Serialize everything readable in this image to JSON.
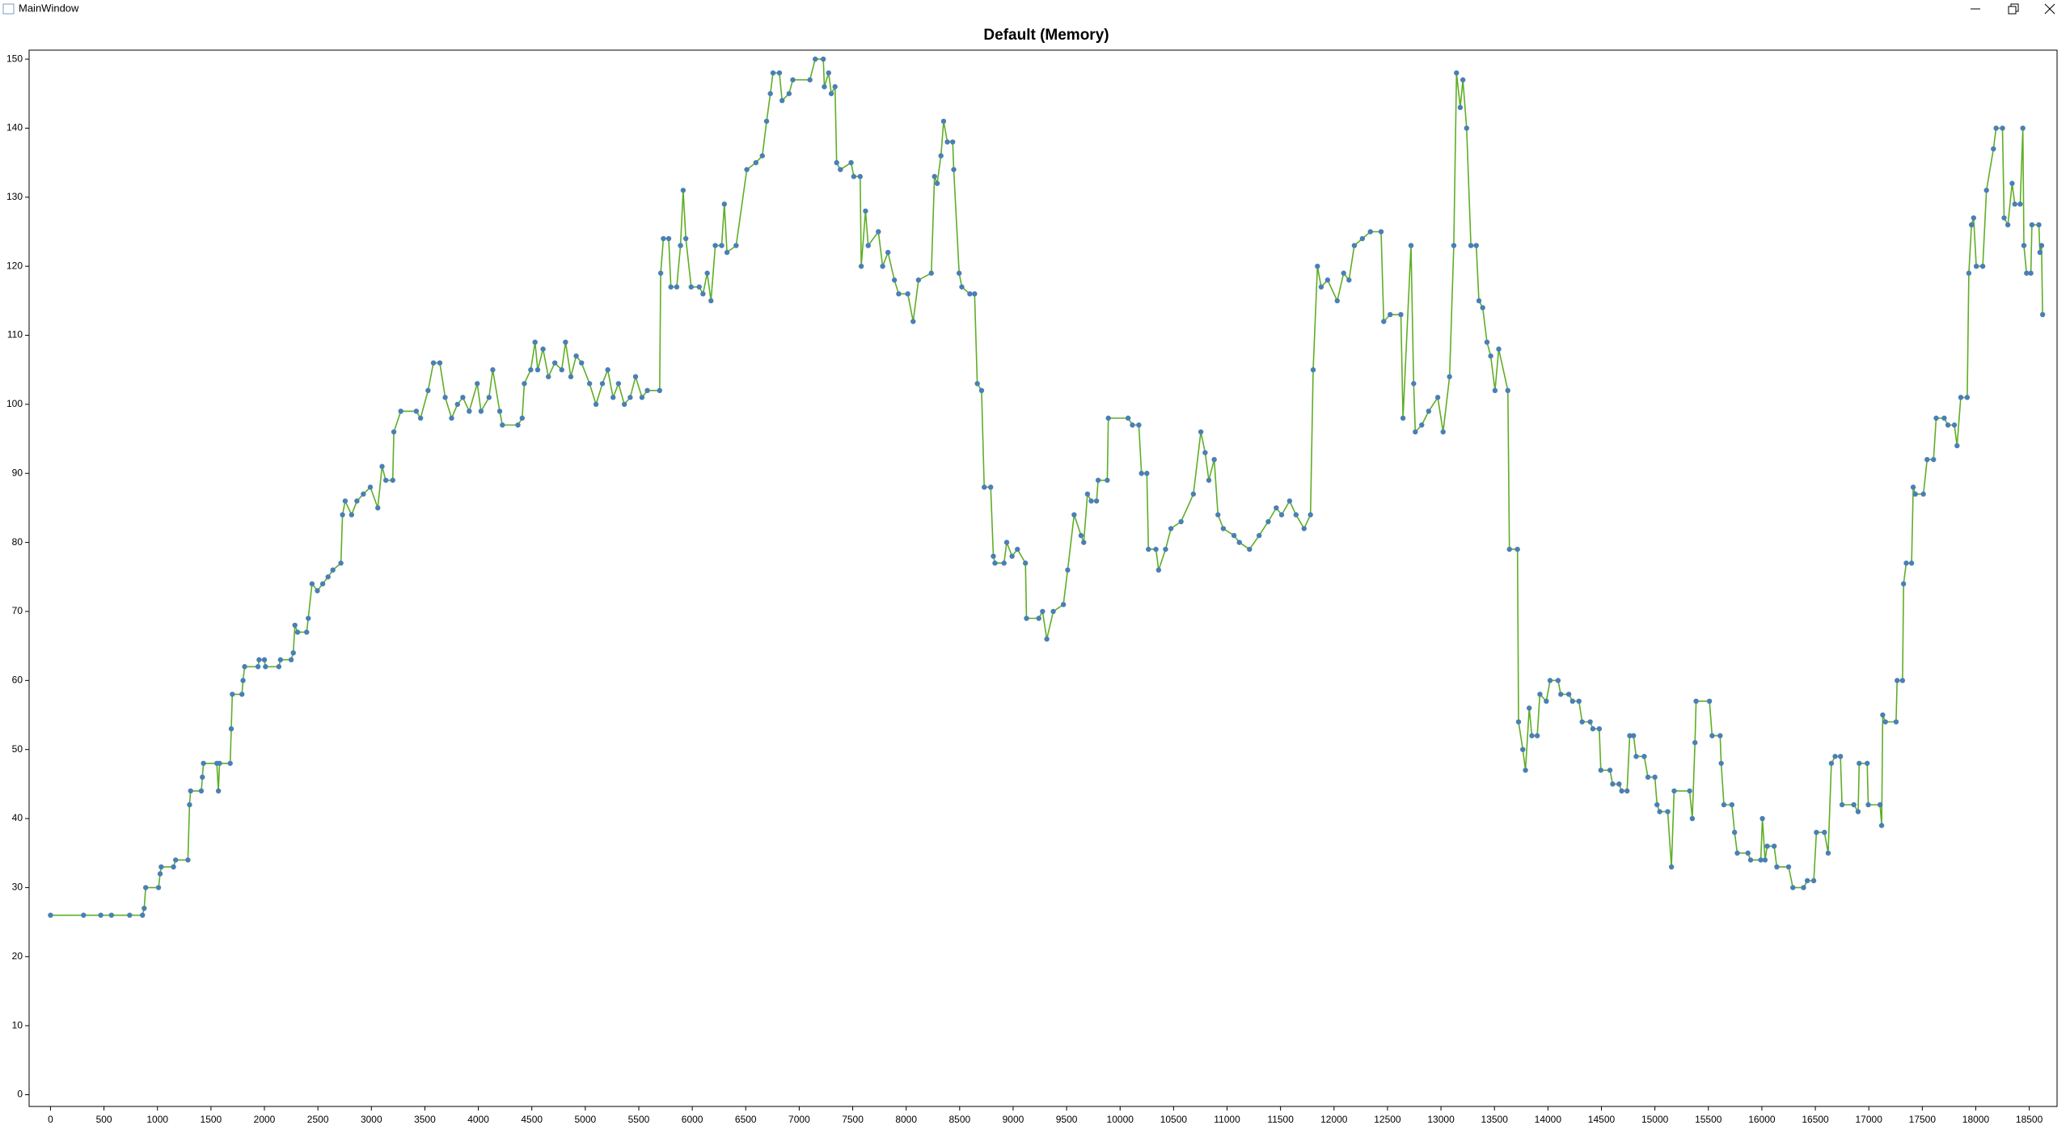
{
  "window": {
    "title": "MainWindow"
  },
  "chart_data": {
    "type": "line",
    "title": "Default (Memory)",
    "x": [
      0,
      309,
      470,
      570,
      740,
      860,
      876,
      890,
      1010,
      1025,
      1035,
      1150,
      1170,
      1285,
      1300,
      1310,
      1410,
      1420,
      1430,
      1555,
      1570,
      1580,
      1680,
      1690,
      1700,
      1790,
      1800,
      1815,
      1940,
      1950,
      2000,
      2010,
      2135,
      2150,
      2250,
      2270,
      2285,
      2310,
      2395,
      2410,
      2445,
      2495,
      2545,
      2595,
      2640,
      2715,
      2730,
      2755,
      2815,
      2865,
      2925,
      2990,
      3060,
      3100,
      3135,
      3200,
      3210,
      3275,
      3420,
      3460,
      3530,
      3580,
      3640,
      3690,
      3750,
      3805,
      3855,
      3915,
      3990,
      4025,
      4100,
      4135,
      4200,
      4225,
      4370,
      4410,
      4430,
      4490,
      4530,
      4555,
      4605,
      4655,
      4715,
      4780,
      4815,
      4865,
      4915,
      4965,
      5040,
      5100,
      5160,
      5210,
      5260,
      5310,
      5365,
      5420,
      5470,
      5530,
      5580,
      5695,
      5705,
      5730,
      5780,
      5800,
      5855,
      5890,
      5915,
      5940,
      5990,
      6065,
      6100,
      6140,
      6175,
      6215,
      6275,
      6300,
      6325,
      6410,
      6510,
      6595,
      6655,
      6695,
      6730,
      6755,
      6815,
      6840,
      6905,
      6940,
      7100,
      7150,
      7225,
      7235,
      7275,
      7300,
      7335,
      7350,
      7385,
      7485,
      7510,
      7570,
      7580,
      7620,
      7645,
      7740,
      7780,
      7830,
      7890,
      7930,
      8015,
      8065,
      8115,
      8235,
      8265,
      8290,
      8325,
      8350,
      8385,
      8435,
      8445,
      8495,
      8520,
      8595,
      8640,
      8665,
      8705,
      8730,
      8790,
      8815,
      8830,
      8915,
      8940,
      8990,
      9040,
      9115,
      9125,
      9240,
      9275,
      9315,
      9375,
      9470,
      9510,
      9570,
      9635,
      9660,
      9695,
      9730,
      9780,
      9795,
      9880,
      9890,
      10075,
      10115,
      10175,
      10200,
      10250,
      10265,
      10335,
      10360,
      10425,
      10475,
      10570,
      10685,
      10755,
      10795,
      10830,
      10880,
      10915,
      10965,
      11065,
      11115,
      11210,
      11300,
      11385,
      11460,
      11510,
      11585,
      11645,
      11720,
      11780,
      11805,
      11845,
      11880,
      11940,
      12030,
      12090,
      12140,
      12190,
      12265,
      12340,
      12440,
      12465,
      12525,
      12625,
      12645,
      12720,
      12745,
      12760,
      12820,
      12885,
      12970,
      13020,
      13080,
      13120,
      13145,
      13180,
      13205,
      13240,
      13280,
      13330,
      13355,
      13390,
      13430,
      13465,
      13505,
      13540,
      13625,
      13640,
      13715,
      13725,
      13765,
      13790,
      13825,
      13850,
      13900,
      13925,
      13985,
      14020,
      14095,
      14120,
      14195,
      14230,
      14290,
      14320,
      14395,
      14420,
      14480,
      14495,
      14580,
      14605,
      14665,
      14690,
      14740,
      14765,
      14800,
      14825,
      14900,
      14935,
      15000,
      15020,
      15045,
      15120,
      15155,
      15180,
      15325,
      15350,
      15375,
      15385,
      15510,
      15535,
      15610,
      15620,
      15645,
      15720,
      15745,
      15770,
      15870,
      15895,
      15990,
      16005,
      16030,
      16050,
      16115,
      16140,
      16250,
      16290,
      16390,
      16425,
      16485,
      16510,
      16585,
      16620,
      16650,
      16685,
      16735,
      16750,
      16860,
      16900,
      16910,
      16985,
      16995,
      17105,
      17120,
      17130,
      17155,
      17255,
      17265,
      17315,
      17325,
      17350,
      17400,
      17415,
      17435,
      17510,
      17545,
      17605,
      17630,
      17705,
      17740,
      17800,
      17825,
      17860,
      17920,
      17935,
      17960,
      17980,
      18005,
      18065,
      18100,
      18165,
      18190,
      18250,
      18265,
      18300,
      18340,
      18365,
      18415,
      18440,
      18450,
      18475,
      18515,
      18525,
      18590,
      18600,
      18615,
      18625
    ],
    "series": [
      {
        "color": "#5fae25",
        "marker_color": "#4a7fb5",
        "values": [
          26,
          26,
          26,
          26,
          26,
          26,
          27,
          30,
          30,
          32,
          33,
          33,
          34,
          34,
          42,
          44,
          44,
          46,
          48,
          48,
          44,
          48,
          48,
          53,
          58,
          58,
          60,
          62,
          62,
          63,
          63,
          62,
          62,
          63,
          63,
          64,
          68,
          67,
          67,
          69,
          74,
          73,
          74,
          75,
          76,
          77,
          84,
          86,
          84,
          86,
          87,
          88,
          85,
          91,
          89,
          89,
          96,
          99,
          99,
          98,
          102,
          106,
          106,
          101,
          98,
          100,
          101,
          99,
          103,
          99,
          101,
          105,
          99,
          97,
          97,
          98,
          103,
          105,
          109,
          105,
          108,
          104,
          106,
          105,
          109,
          104,
          107,
          106,
          103,
          100,
          103,
          105,
          101,
          103,
          100,
          101,
          104,
          101,
          102,
          102,
          119,
          124,
          124,
          117,
          117,
          123,
          131,
          124,
          117,
          117,
          116,
          119,
          115,
          123,
          123,
          129,
          122,
          123,
          134,
          135,
          136,
          141,
          145,
          148,
          148,
          144,
          145,
          147,
          147,
          150,
          150,
          146,
          148,
          145,
          146,
          135,
          134,
          135,
          133,
          133,
          120,
          128,
          123,
          125,
          120,
          122,
          118,
          116,
          116,
          112,
          118,
          119,
          133,
          132,
          136,
          141,
          138,
          138,
          134,
          119,
          117,
          116,
          116,
          103,
          102,
          88,
          88,
          78,
          77,
          77,
          80,
          78,
          79,
          77,
          69,
          69,
          70,
          66,
          70,
          71,
          76,
          84,
          81,
          80,
          87,
          86,
          86,
          89,
          89,
          98,
          98,
          97,
          97,
          90,
          90,
          79,
          79,
          76,
          79,
          82,
          83,
          87,
          96,
          93,
          89,
          92,
          84,
          82,
          81,
          80,
          79,
          81,
          83,
          85,
          84,
          86,
          84,
          82,
          84,
          105,
          120,
          117,
          118,
          115,
          119,
          118,
          123,
          124,
          125,
          125,
          112,
          113,
          113,
          98,
          123,
          103,
          96,
          97,
          99,
          101,
          96,
          104,
          123,
          148,
          143,
          147,
          140,
          123,
          123,
          115,
          114,
          109,
          107,
          102,
          108,
          102,
          79,
          79,
          54,
          50,
          47,
          56,
          52,
          52,
          58,
          57,
          60,
          60,
          58,
          58,
          57,
          57,
          54,
          54,
          53,
          53,
          47,
          47,
          45,
          45,
          44,
          44,
          52,
          52,
          49,
          49,
          46,
          46,
          42,
          41,
          41,
          33,
          44,
          44,
          40,
          51,
          57,
          57,
          52,
          52,
          48,
          42,
          42,
          38,
          35,
          35,
          34,
          34,
          40,
          34,
          36,
          36,
          33,
          33,
          30,
          30,
          31,
          31,
          38,
          38,
          35,
          48,
          49,
          49,
          42,
          42,
          41,
          48,
          48,
          42,
          42,
          39,
          55,
          54,
          54,
          60,
          60,
          74,
          77,
          77,
          88,
          87,
          87,
          92,
          92,
          98,
          98,
          97,
          97,
          94,
          101,
          101,
          119,
          126,
          127,
          120,
          120,
          131,
          137,
          140,
          140,
          127,
          126,
          132,
          129,
          129,
          140,
          123,
          119,
          119,
          126,
          126,
          122,
          123,
          113
        ]
      }
    ],
    "xlim": [
      -200,
      18760
    ],
    "ylim": [
      -1.7,
      151.3
    ],
    "xticks": [
      0,
      500,
      1000,
      1500,
      2000,
      2500,
      3000,
      3500,
      4000,
      4500,
      5000,
      5500,
      6000,
      6500,
      7000,
      7500,
      8000,
      8500,
      9000,
      9500,
      10000,
      10500,
      11000,
      11500,
      12000,
      12500,
      13000,
      13500,
      14000,
      14500,
      15000,
      15500,
      16000,
      16500,
      17000,
      17500,
      18000,
      18500
    ],
    "yticks": [
      0,
      10,
      20,
      30,
      40,
      50,
      60,
      70,
      80,
      90,
      100,
      110,
      120,
      130,
      140,
      150
    ],
    "grid": false
  }
}
